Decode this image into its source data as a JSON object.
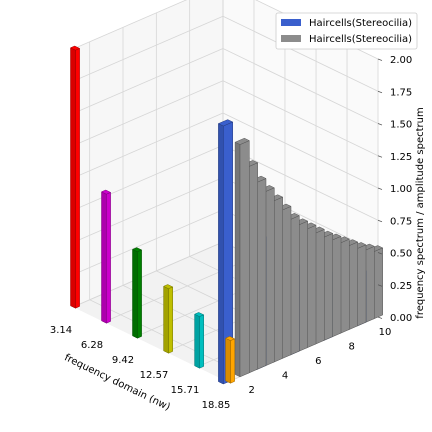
{
  "chart_data": {
    "type": "bar3d",
    "xlabel": "frequency domain (nw)",
    "zlabel": "frequency spectrum / amplitude spectrum",
    "x_ticks": [
      "3.14",
      "6.28",
      "9.42",
      "12.57",
      "15.71",
      "18.85"
    ],
    "y_ticks": [
      "2",
      "4",
      "6",
      "8",
      "10"
    ],
    "z_ticks": [
      "0.00",
      "0.25",
      "0.50",
      "0.75",
      "1.00",
      "1.25",
      "1.50",
      "1.75",
      "2.00"
    ],
    "xlim": [
      3.14,
      18.85
    ],
    "ylim": [
      1,
      10
    ],
    "zlim": [
      0,
      2
    ],
    "legend": [
      {
        "label": "Haircells(Stereocilia)",
        "color": "#3a5fcd"
      },
      {
        "label": "Haircells(Stereocilia)",
        "color": "#8c8c8c"
      }
    ],
    "legend_position": "top-right",
    "spectrum_lines": [
      {
        "x": 3.14,
        "amplitude": 2.0,
        "color": "#ff0000"
      },
      {
        "x": 6.28,
        "amplitude": 1.0,
        "color": "#cc00cc"
      },
      {
        "x": 9.42,
        "amplitude": 0.67,
        "color": "#008000"
      },
      {
        "x": 12.57,
        "amplitude": 0.5,
        "color": "#bfbf00"
      },
      {
        "x": 15.71,
        "amplitude": 0.4,
        "color": "#00bfbf"
      },
      {
        "x": 18.85,
        "amplitude": 0.33,
        "color": "#ffa500"
      }
    ],
    "series": [
      {
        "name": "Haircells(Stereocilia)",
        "color": "#3a5fcd",
        "y": [
          1,
          3,
          5,
          7,
          9
        ],
        "values": [
          2.0,
          1.0,
          0.67,
          0.5,
          0.4
        ]
      },
      {
        "name": "Haircells(Stereocilia)",
        "color": "#8c8c8c",
        "y": [
          2,
          2.5,
          3,
          3.5,
          4,
          4.5,
          5,
          5.5,
          6,
          6.5,
          7,
          7.5,
          8,
          8.5,
          9,
          9.5,
          10
        ],
        "values": [
          1.8,
          1.6,
          1.45,
          1.35,
          1.25,
          1.15,
          1.05,
          0.98,
          0.92,
          0.86,
          0.8,
          0.75,
          0.7,
          0.65,
          0.6,
          0.56,
          0.52
        ]
      }
    ]
  }
}
